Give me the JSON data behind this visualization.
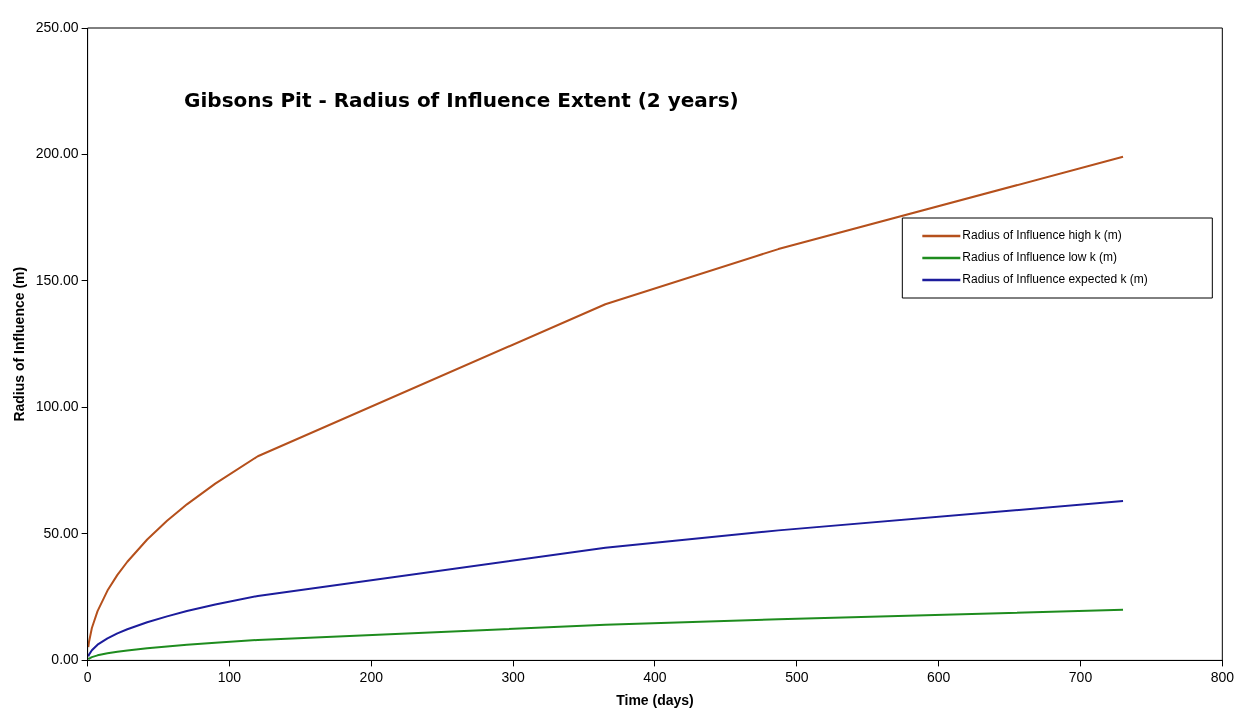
{
  "chart_data": {
    "type": "line",
    "title": "Gibsons Pit - Radius of Influence Extent (2 years)",
    "xlabel": "Time (days)",
    "ylabel": "Radius of Influence (m)",
    "x": [
      0.5,
      1,
      3,
      7,
      14,
      21,
      28,
      42,
      56,
      70,
      90,
      120,
      365,
      487,
      730
    ],
    "series": [
      {
        "name": "Radius of Influence high k (m)",
        "color": "#b5501c",
        "values": [
          5.2,
          7.4,
          12.8,
          19.5,
          27.6,
          33.8,
          39.0,
          47.8,
          55.2,
          61.7,
          69.9,
          80.7,
          140.8,
          162.6,
          199.1
        ]
      },
      {
        "name": "Radius of Influence low k (m)",
        "color": "#1e8c1e",
        "values": [
          0.5,
          0.7,
          1.3,
          2.0,
          2.8,
          3.4,
          3.9,
          4.8,
          5.5,
          6.2,
          7.0,
          8.1,
          14.1,
          16.3,
          20.0
        ]
      },
      {
        "name": "Radius of Influence expected k (m)",
        "color": "#1c1c9c",
        "values": [
          1.6,
          2.3,
          4.0,
          6.2,
          8.7,
          10.7,
          12.3,
          15.1,
          17.4,
          19.5,
          22.1,
          25.5,
          44.5,
          51.4,
          63.0
        ]
      }
    ],
    "xlim": [
      0,
      800
    ],
    "xticks": [
      0,
      100,
      200,
      300,
      400,
      500,
      600,
      700,
      800
    ],
    "ylim": [
      0,
      250
    ],
    "yticks": [
      {
        "value": 0,
        "label": "0.00"
      },
      {
        "value": 50,
        "label": "50.00"
      },
      {
        "value": 100,
        "label": "100.00"
      },
      {
        "value": 150,
        "label": "150.00"
      },
      {
        "value": 200,
        "label": "200.00"
      },
      {
        "value": 250,
        "label": "250.00"
      }
    ],
    "grid": false,
    "legend": "top right",
    "marker": "none",
    "line_style": "solid"
  }
}
